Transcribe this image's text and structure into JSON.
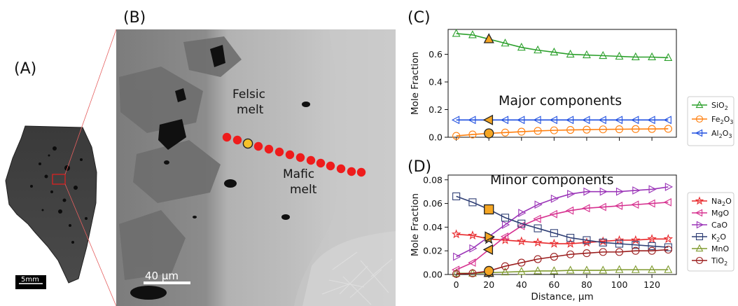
{
  "figure": {
    "panels": {
      "a": "(A)",
      "b": "(B)",
      "c": "(C)",
      "d": "(D)"
    },
    "sample": {
      "scale_bar": "5mm"
    },
    "micrograph": {
      "felsic_line1": "Felsic",
      "felsic_line2": "melt",
      "mafic_line1": "Mafic",
      "mafic_line2": "melt",
      "scale_bar": "40 µm"
    }
  },
  "chart_data": [
    {
      "type": "line",
      "id": "C",
      "title": "Major components",
      "xlabel": "",
      "ylabel": "Mole Fraction",
      "xlim": [
        -5,
        135
      ],
      "ylim": [
        0,
        0.78
      ],
      "yticks": [
        0.0,
        0.2,
        0.4,
        0.6
      ],
      "ytick_labels": [
        "0.0",
        "0.2",
        "0.4",
        "0.6"
      ],
      "xticks": [
        0,
        20,
        40,
        60,
        80,
        100,
        120
      ],
      "x": [
        0,
        10,
        20,
        30,
        40,
        50,
        60,
        70,
        80,
        90,
        100,
        110,
        120,
        130
      ],
      "highlight_x": 20,
      "legend_position": "right",
      "series": [
        {
          "name": "SiO",
          "sub": "2",
          "color": "#2ca02c",
          "marker": "triangle-up",
          "values": [
            0.75,
            0.74,
            0.71,
            0.68,
            0.65,
            0.63,
            0.615,
            0.6,
            0.595,
            0.59,
            0.585,
            0.58,
            0.58,
            0.575
          ]
        },
        {
          "name": "Fe",
          "sub": "2",
          "name2": "O",
          "sub2": "3",
          "color": "#ff7f0e",
          "marker": "circle",
          "values": [
            0.01,
            0.02,
            0.028,
            0.034,
            0.04,
            0.046,
            0.05,
            0.053,
            0.055,
            0.057,
            0.058,
            0.059,
            0.06,
            0.061
          ]
        },
        {
          "name": "Al",
          "sub": "2",
          "name2": "O",
          "sub2": "3",
          "color": "#1f4fe0",
          "marker": "triangle-left",
          "values": [
            0.125,
            0.125,
            0.125,
            0.125,
            0.125,
            0.125,
            0.125,
            0.125,
            0.125,
            0.125,
            0.125,
            0.125,
            0.125,
            0.125
          ]
        }
      ]
    },
    {
      "type": "line",
      "id": "D",
      "title": "Minor components",
      "xlabel": "Distance, µm",
      "ylabel": "Mole Fraction",
      "xlim": [
        -5,
        135
      ],
      "ylim": [
        0,
        0.084
      ],
      "yticks": [
        0.0,
        0.02,
        0.04,
        0.06,
        0.08
      ],
      "ytick_labels": [
        "0.00",
        "0.02",
        "0.04",
        "0.06",
        "0.08"
      ],
      "xticks": [
        0,
        20,
        40,
        60,
        80,
        100,
        120
      ],
      "xtick_labels": [
        "0",
        "20",
        "40",
        "60",
        "80",
        "100",
        "120"
      ],
      "x": [
        0,
        10,
        20,
        30,
        40,
        50,
        60,
        70,
        80,
        90,
        100,
        110,
        120,
        130
      ],
      "highlight_x": 20,
      "legend_position": "right",
      "series": [
        {
          "name": "Na",
          "sub": "2",
          "name2": "O",
          "color": "#e8282b",
          "marker": "star",
          "values": [
            0.034,
            0.033,
            0.03,
            0.029,
            0.028,
            0.027,
            0.026,
            0.026,
            0.027,
            0.028,
            0.029,
            0.029,
            0.03,
            0.03
          ]
        },
        {
          "name": "MgO",
          "color": "#d6308f",
          "marker": "triangle-left",
          "values": [
            0.004,
            0.01,
            0.021,
            0.032,
            0.041,
            0.047,
            0.051,
            0.054,
            0.056,
            0.057,
            0.058,
            0.059,
            0.06,
            0.061
          ]
        },
        {
          "name": "CaO",
          "color": "#9b35b8",
          "marker": "triangle-right",
          "values": [
            0.015,
            0.022,
            0.032,
            0.042,
            0.052,
            0.059,
            0.064,
            0.068,
            0.07,
            0.07,
            0.07,
            0.071,
            0.072,
            0.074
          ]
        },
        {
          "name": "K",
          "sub": "2",
          "name2": "O",
          "color": "#2f3f75",
          "marker": "square",
          "values": [
            0.066,
            0.061,
            0.055,
            0.048,
            0.043,
            0.039,
            0.035,
            0.031,
            0.029,
            0.027,
            0.026,
            0.025,
            0.024,
            0.023
          ]
        },
        {
          "name": "MnO",
          "color": "#7f9a2e",
          "marker": "triangle-up",
          "values": [
            0.001,
            0.001,
            0.0015,
            0.002,
            0.0025,
            0.003,
            0.003,
            0.0035,
            0.0035,
            0.0035,
            0.004,
            0.004,
            0.004,
            0.004
          ]
        },
        {
          "name": "TiO",
          "sub": "2",
          "color": "#9a1c1c",
          "marker": "circle",
          "values": [
            0.0005,
            0.001,
            0.003,
            0.007,
            0.01,
            0.013,
            0.015,
            0.017,
            0.018,
            0.019,
            0.019,
            0.02,
            0.02,
            0.021
          ]
        }
      ]
    }
  ]
}
